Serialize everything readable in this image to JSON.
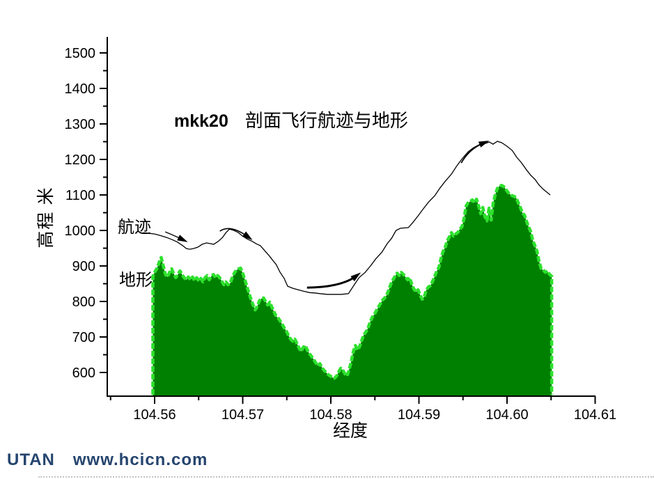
{
  "page": {
    "watermark": {
      "brand": "UTAN",
      "url": "www.hcicn.com",
      "color": "#25456e"
    }
  },
  "chart_data": {
    "type": "area",
    "title": {
      "prefix": "mkk20",
      "main": "剖面飞行航迹与地形"
    },
    "xlabel": "经度",
    "ylabel": "高程 米",
    "grid": false,
    "legend_position": "inline-labels",
    "xlim": [
      104.5546,
      104.6101
    ],
    "ylim": [
      535,
      1545
    ],
    "x_ticks_major": [
      104.56,
      104.57,
      104.58,
      104.59,
      104.6,
      104.61
    ],
    "x_tick_labels": [
      "104.56",
      "104.57",
      "104.58",
      "104.59",
      "104.60",
      "104.61"
    ],
    "x_ticks_minor": [
      104.555,
      104.565,
      104.575,
      104.585,
      104.595,
      104.605
    ],
    "y_ticks_major": [
      600,
      700,
      800,
      900,
      1000,
      1100,
      1200,
      1300,
      1400,
      1500
    ],
    "y_ticks_minor": [
      650,
      750,
      850,
      950,
      1050,
      1150,
      1250,
      1350,
      1450
    ],
    "series": [
      {
        "name": "航迹",
        "type": "line",
        "color": "#000000",
        "points": [
          [
            104.5587,
            994
          ],
          [
            104.56,
            990
          ],
          [
            104.5606,
            986
          ],
          [
            104.5614,
            980
          ],
          [
            104.5621,
            973
          ],
          [
            104.5626,
            967
          ],
          [
            104.5632,
            957
          ],
          [
            104.5636,
            949
          ],
          [
            104.564,
            947
          ],
          [
            104.5644,
            949
          ],
          [
            104.5649,
            953
          ],
          [
            104.5654,
            961
          ],
          [
            104.5659,
            965
          ],
          [
            104.5663,
            963
          ],
          [
            104.5667,
            961
          ],
          [
            104.5672,
            969
          ],
          [
            104.5677,
            980
          ],
          [
            104.5681,
            994
          ],
          [
            104.5685,
            1004
          ],
          [
            104.569,
            1000
          ],
          [
            104.5695,
            994
          ],
          [
            104.57,
            984
          ],
          [
            104.5705,
            976
          ],
          [
            104.5711,
            969
          ],
          [
            104.5715,
            963
          ],
          [
            104.572,
            957
          ],
          [
            104.5725,
            943
          ],
          [
            104.573,
            929
          ],
          [
            104.5734,
            916
          ],
          [
            104.5738,
            904
          ],
          [
            104.5742,
            884
          ],
          [
            104.5747,
            865
          ],
          [
            104.5751,
            843
          ],
          [
            104.5757,
            837
          ],
          [
            104.5763,
            833
          ],
          [
            104.5769,
            829
          ],
          [
            104.5776,
            825
          ],
          [
            104.5782,
            824
          ],
          [
            104.5788,
            822
          ],
          [
            104.5796,
            820
          ],
          [
            104.5804,
            820
          ],
          [
            104.5812,
            820
          ],
          [
            104.582,
            822
          ],
          [
            104.5826,
            845
          ],
          [
            104.5832,
            867
          ],
          [
            104.5839,
            882
          ],
          [
            104.5845,
            900
          ],
          [
            104.5851,
            920
          ],
          [
            104.5858,
            939
          ],
          [
            104.5864,
            963
          ],
          [
            104.5869,
            978
          ],
          [
            104.5874,
            1000
          ],
          [
            104.5879,
            1006
          ],
          [
            104.5888,
            1008
          ],
          [
            104.5893,
            1022
          ],
          [
            104.5899,
            1041
          ],
          [
            104.5905,
            1061
          ],
          [
            104.5911,
            1080
          ],
          [
            104.5918,
            1098
          ],
          [
            104.5924,
            1120
          ],
          [
            104.593,
            1139
          ],
          [
            104.5937,
            1159
          ],
          [
            104.5943,
            1182
          ],
          [
            104.5949,
            1202
          ],
          [
            104.5956,
            1222
          ],
          [
            104.5962,
            1233
          ],
          [
            104.5968,
            1241
          ],
          [
            104.5975,
            1245
          ],
          [
            104.598,
            1249
          ],
          [
            104.5984,
            1243
          ],
          [
            104.5989,
            1251
          ],
          [
            104.5994,
            1247
          ],
          [
            104.6,
            1237
          ],
          [
            104.6006,
            1225
          ],
          [
            104.6011,
            1206
          ],
          [
            104.6016,
            1192
          ],
          [
            104.6022,
            1171
          ],
          [
            104.6027,
            1155
          ],
          [
            104.6032,
            1143
          ],
          [
            104.6036,
            1129
          ],
          [
            104.6041,
            1116
          ],
          [
            104.6046,
            1106
          ],
          [
            104.6049,
            1100
          ]
        ]
      },
      {
        "name": "地形",
        "type": "area",
        "fill": "#008001",
        "edge": "#2de12d",
        "lon_start": 104.5598,
        "lon_step": 0.000237,
        "elev": [
          871,
          884,
          894,
          910,
          924,
          900,
          876,
          869,
          882,
          892,
          878,
          867,
          876,
          886,
          876,
          867,
          861,
          869,
          861,
          869,
          859,
          867,
          857,
          865,
          855,
          867,
          873,
          861,
          871,
          876,
          867,
          873,
          867,
          857,
          847,
          855,
          847,
          851,
          867,
          880,
          888,
          892,
          894,
          880,
          863,
          843,
          824,
          806,
          790,
          776,
          786,
          802,
          808,
          810,
          800,
          790,
          798,
          784,
          771,
          759,
          753,
          745,
          735,
          725,
          716,
          704,
          694,
          688,
          694,
          682,
          669,
          659,
          671,
          676,
          663,
          653,
          645,
          637,
          627,
          619,
          625,
          614,
          606,
          600,
          594,
          590,
          586,
          584,
          590,
          602,
          612,
          606,
          596,
          590,
          608,
          631,
          659,
          676,
          663,
          673,
          690,
          706,
          714,
          725,
          741,
          755,
          763,
          774,
          784,
          794,
          804,
          810,
          818,
          833,
          849,
          861,
          871,
          880,
          873,
          882,
          876,
          869,
          861,
          867,
          849,
          835,
          827,
          833,
          818,
          806,
          814,
          833,
          841,
          845,
          857,
          871,
          886,
          896,
          922,
          941,
          953,
          971,
          982,
          994,
          984,
          990,
          994,
          1004,
          1010,
          1033,
          1069,
          1078,
          1082,
          1086,
          1078,
          1088,
          1069,
          1047,
          1065,
          1039,
          1027,
          1063,
          1029,
          1078,
          1102,
          1118,
          1125,
          1127,
          1124,
          1116,
          1108,
          1102,
          1098,
          1096,
          1092,
          1078,
          1065,
          1049,
          1043,
          1025,
          1010,
          996,
          971,
          957,
          941,
          912,
          892,
          888,
          882,
          886,
          876,
          871
        ]
      }
    ],
    "annotations": {
      "arrows": [
        {
          "w": 1.3,
          "pts": [
            [
              104.5612,
              996
            ],
            [
              104.5622,
              986
            ],
            [
              104.5632,
              974
            ]
          ]
        },
        {
          "w": 1.6,
          "pts": [
            [
              104.5674,
              998
            ],
            [
              104.5686,
              1018
            ],
            [
              104.5706,
              982
            ]
          ]
        },
        {
          "w": 3.0,
          "pts": [
            [
              104.5773,
              839
            ],
            [
              104.5812,
              840
            ],
            [
              104.5829,
              872
            ]
          ]
        },
        {
          "w": 1.8,
          "pts": [
            [
              104.5948,
              1190
            ],
            [
              104.5957,
              1230
            ],
            [
              104.5974,
              1247
            ]
          ]
        }
      ]
    }
  }
}
